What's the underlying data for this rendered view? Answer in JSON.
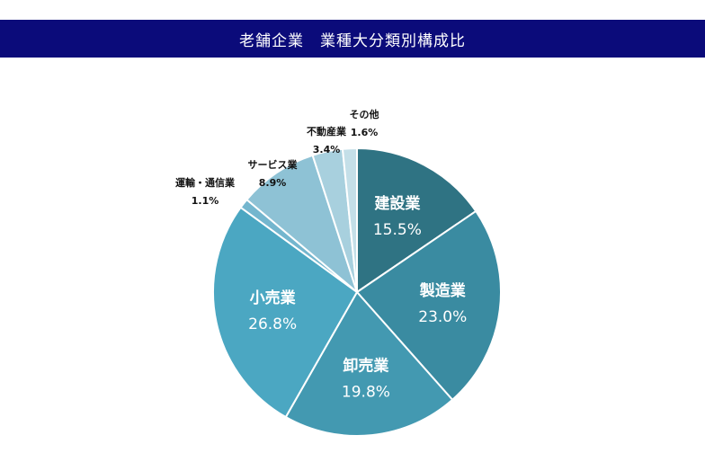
{
  "chart_data": {
    "type": "pie",
    "title": "老舗企業　業種大分類別構成比",
    "start_angle_deg": 0,
    "direction": "clockwise",
    "slices": [
      {
        "label": "建設業",
        "value": 15.5,
        "value_label": "15.5%",
        "color": "#2f7383",
        "label_pos": "inside"
      },
      {
        "label": "製造業",
        "value": 23.0,
        "value_label": "23.0%",
        "color": "#3a8ba1",
        "label_pos": "inside"
      },
      {
        "label": "卸売業",
        "value": 19.8,
        "value_label": "19.8%",
        "color": "#4399b1",
        "label_pos": "inside"
      },
      {
        "label": "小売業",
        "value": 26.8,
        "value_label": "26.8%",
        "color": "#4ba7c2",
        "label_pos": "inside"
      },
      {
        "label": "運輸・通信業",
        "value": 1.1,
        "value_label": "1.1%",
        "color": "#74b6ce",
        "label_pos": "outside"
      },
      {
        "label": "サービス業",
        "value": 8.9,
        "value_label": "8.9%",
        "color": "#8ec2d5",
        "label_pos": "outside"
      },
      {
        "label": "不動産業",
        "value": 3.4,
        "value_label": "3.4%",
        "color": "#a8d0de",
        "label_pos": "outside"
      },
      {
        "label": "その他",
        "value": 1.6,
        "value_label": "1.6%",
        "color": "#c4dfe8",
        "label_pos": "outside"
      }
    ]
  }
}
